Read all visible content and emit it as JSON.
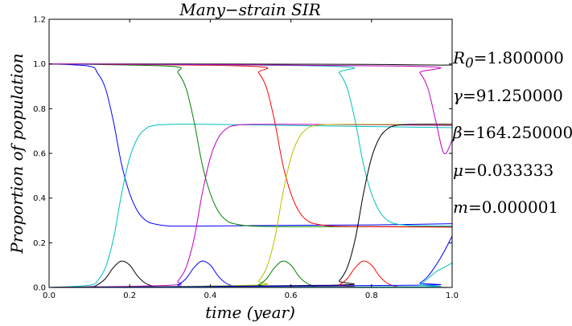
{
  "chart_data": {
    "type": "line",
    "title": "Many−strain SIR",
    "xlabel": "time (year)",
    "ylabel": "Proportion of population",
    "xlim": [
      0.0,
      1.0
    ],
    "ylim": [
      0.0,
      1.2
    ],
    "xticks": [
      "0.0",
      "0.2",
      "0.4",
      "0.6",
      "0.8",
      "1.0"
    ],
    "yticks": [
      "0.0",
      "0.2",
      "0.4",
      "0.6",
      "0.8",
      "1.0",
      "1.2"
    ],
    "grid": false,
    "colors": {
      "black": "#000000",
      "blue": "#0000ff",
      "cyan": "#00bfbf",
      "green": "#007f00",
      "magenta": "#bf00bf",
      "red": "#ff0000",
      "yellow": "#bfbf00"
    },
    "series": [
      {
        "color": "black",
        "role": "susceptible",
        "x": [
          0,
          0.3,
          0.6,
          0.8,
          0.85,
          0.9,
          0.95,
          1.0
        ],
        "y": [
          1.0,
          1.0,
          0.999,
          0.998,
          0.997,
          0.996,
          0.995,
          0.995
        ]
      },
      {
        "color": "blue",
        "role": "susceptible",
        "x": [
          0,
          0.1,
          0.12,
          0.14,
          0.16,
          0.18,
          0.2,
          0.22,
          0.24,
          0.26,
          0.3,
          0.4,
          0.6,
          0.8,
          1.0
        ],
        "y": [
          1.0,
          0.99,
          0.96,
          0.89,
          0.74,
          0.55,
          0.42,
          0.34,
          0.3,
          0.285,
          0.275,
          0.275,
          0.278,
          0.28,
          0.285
        ]
      },
      {
        "color": "cyan",
        "role": "recovered",
        "x": [
          0,
          0.1,
          0.12,
          0.14,
          0.16,
          0.18,
          0.2,
          0.22,
          0.24,
          0.26,
          0.3,
          0.4,
          0.6,
          0.8,
          1.0
        ],
        "y": [
          0.0,
          0.01,
          0.03,
          0.09,
          0.22,
          0.42,
          0.58,
          0.67,
          0.71,
          0.725,
          0.73,
          0.73,
          0.725,
          0.72,
          0.715
        ]
      },
      {
        "color": "black",
        "role": "infected",
        "x": [
          0,
          0.1,
          0.12,
          0.14,
          0.16,
          0.18,
          0.2,
          0.22,
          0.24,
          0.26,
          0.28,
          1.0
        ],
        "y": [
          0.0,
          0.003,
          0.012,
          0.04,
          0.09,
          0.118,
          0.1,
          0.05,
          0.018,
          0.006,
          0.002,
          0.0
        ]
      },
      {
        "color": "green",
        "role": "susceptible",
        "x": [
          0,
          0.3,
          0.32,
          0.34,
          0.36,
          0.38,
          0.4,
          0.42,
          0.44,
          0.46,
          0.5,
          0.6,
          0.8,
          1.0
        ],
        "y": [
          1.0,
          0.99,
          0.96,
          0.89,
          0.74,
          0.55,
          0.42,
          0.34,
          0.3,
          0.285,
          0.275,
          0.272,
          0.272,
          0.272
        ]
      },
      {
        "color": "magenta",
        "role": "recovered",
        "x": [
          0,
          0.3,
          0.32,
          0.34,
          0.36,
          0.38,
          0.4,
          0.42,
          0.44,
          0.46,
          0.5,
          0.6,
          0.8,
          1.0
        ],
        "y": [
          0.0,
          0.01,
          0.03,
          0.09,
          0.22,
          0.42,
          0.58,
          0.67,
          0.71,
          0.725,
          0.73,
          0.73,
          0.728,
          0.725
        ]
      },
      {
        "color": "blue",
        "role": "infected",
        "x": [
          0,
          0.3,
          0.32,
          0.34,
          0.36,
          0.38,
          0.4,
          0.42,
          0.44,
          0.46,
          0.48,
          1.0
        ],
        "y": [
          0.0,
          0.003,
          0.012,
          0.04,
          0.09,
          0.118,
          0.1,
          0.05,
          0.018,
          0.006,
          0.002,
          0.0
        ]
      },
      {
        "color": "red",
        "role": "susceptible",
        "x": [
          0,
          0.5,
          0.52,
          0.54,
          0.56,
          0.58,
          0.6,
          0.62,
          0.64,
          0.66,
          0.7,
          0.8,
          1.0
        ],
        "y": [
          1.0,
          0.99,
          0.96,
          0.89,
          0.74,
          0.55,
          0.42,
          0.34,
          0.3,
          0.285,
          0.275,
          0.272,
          0.27
        ]
      },
      {
        "color": "yellow",
        "role": "recovered",
        "x": [
          0,
          0.5,
          0.52,
          0.54,
          0.56,
          0.58,
          0.6,
          0.62,
          0.64,
          0.66,
          0.7,
          0.8,
          1.0
        ],
        "y": [
          0.0,
          0.01,
          0.03,
          0.09,
          0.22,
          0.42,
          0.58,
          0.67,
          0.71,
          0.725,
          0.73,
          0.73,
          0.728
        ]
      },
      {
        "color": "green",
        "role": "infected",
        "x": [
          0,
          0.5,
          0.52,
          0.54,
          0.56,
          0.58,
          0.6,
          0.62,
          0.64,
          0.66,
          0.68,
          1.0
        ],
        "y": [
          0.0,
          0.003,
          0.012,
          0.04,
          0.09,
          0.118,
          0.1,
          0.05,
          0.018,
          0.006,
          0.002,
          0.0
        ]
      },
      {
        "color": "cyan",
        "role": "susceptible",
        "x": [
          0,
          0.7,
          0.72,
          0.74,
          0.76,
          0.78,
          0.8,
          0.82,
          0.84,
          0.86,
          0.9,
          1.0
        ],
        "y": [
          1.0,
          0.99,
          0.96,
          0.89,
          0.74,
          0.55,
          0.42,
          0.34,
          0.3,
          0.285,
          0.277,
          0.275
        ]
      },
      {
        "color": "black",
        "role": "recovered",
        "x": [
          0,
          0.7,
          0.72,
          0.74,
          0.76,
          0.78,
          0.8,
          0.82,
          0.84,
          0.86,
          0.9,
          1.0
        ],
        "y": [
          0.0,
          0.01,
          0.03,
          0.09,
          0.22,
          0.42,
          0.58,
          0.67,
          0.71,
          0.725,
          0.73,
          0.73
        ]
      },
      {
        "color": "red",
        "role": "infected",
        "x": [
          0,
          0.7,
          0.72,
          0.74,
          0.76,
          0.78,
          0.8,
          0.82,
          0.84,
          0.86,
          0.88,
          1.0
        ],
        "y": [
          0.0,
          0.003,
          0.012,
          0.04,
          0.09,
          0.118,
          0.1,
          0.05,
          0.018,
          0.006,
          0.002,
          0.0
        ]
      },
      {
        "color": "magenta",
        "role": "susceptible",
        "x": [
          0,
          0.9,
          0.92,
          0.94,
          0.96,
          0.98,
          1.0
        ],
        "y": [
          1.0,
          0.99,
          0.96,
          0.89,
          0.74,
          0.6,
          0.66
        ]
      },
      {
        "color": "blue",
        "role": "recovered",
        "x": [
          0,
          0.9,
          0.92,
          0.94,
          0.96,
          0.98,
          1.0
        ],
        "y": [
          0.0,
          0.01,
          0.02,
          0.05,
          0.1,
          0.16,
          0.23
        ]
      },
      {
        "color": "cyan",
        "role": "infected",
        "x": [
          0,
          0.9,
          0.92,
          0.94,
          0.96,
          0.98,
          1.0
        ],
        "y": [
          0.0,
          0.003,
          0.012,
          0.04,
          0.07,
          0.09,
          0.11
        ]
      }
    ]
  },
  "parameters": [
    {
      "symbol_html": "R<sub>0</sub>",
      "value": "=1.800000"
    },
    {
      "symbol_html": "γ",
      "value": "=91.250000"
    },
    {
      "symbol_html": "β",
      "value": "=164.250000"
    },
    {
      "symbol_html": "μ",
      "value": "=0.033333"
    },
    {
      "symbol_html": "m",
      "value": "=0.000001"
    }
  ]
}
